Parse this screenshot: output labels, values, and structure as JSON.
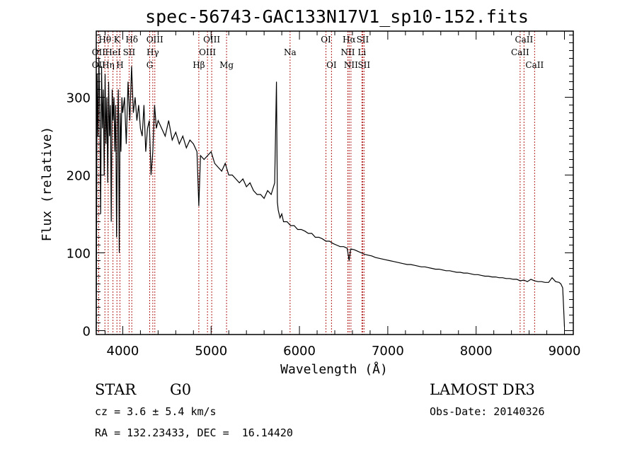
{
  "chart_data": {
    "type": "line",
    "title": "spec-56743-GAC133N17V1_sp10-152.fits",
    "xlabel": "Wavelength (Å)",
    "ylabel": "Flux (relative)",
    "xlim": [
      3700,
      9100
    ],
    "ylim": [
      -5,
      385
    ],
    "xticks": [
      4000,
      5000,
      6000,
      7000,
      8000,
      9000
    ],
    "xtick_labels": [
      "4000",
      "5000",
      "6000",
      "7000",
      "8000",
      "9000"
    ],
    "yticks": [
      0,
      100,
      200,
      300
    ],
    "ytick_labels": [
      "0",
      "100",
      "200",
      "300"
    ],
    "grid": false,
    "series": [
      {
        "name": "spectrum",
        "x": [
          3700,
          3710,
          3720,
          3730,
          3740,
          3750,
          3760,
          3770,
          3780,
          3790,
          3800,
          3810,
          3820,
          3830,
          3840,
          3850,
          3860,
          3870,
          3880,
          3890,
          3900,
          3910,
          3920,
          3930,
          3940,
          3950,
          3960,
          3970,
          3980,
          3990,
          4000,
          4020,
          4040,
          4060,
          4080,
          4100,
          4120,
          4140,
          4160,
          4180,
          4200,
          4220,
          4240,
          4260,
          4280,
          4300,
          4320,
          4340,
          4360,
          4380,
          4400,
          4440,
          4480,
          4520,
          4560,
          4600,
          4640,
          4680,
          4720,
          4760,
          4800,
          4840,
          4861,
          4880,
          4920,
          4960,
          5000,
          5040,
          5080,
          5120,
          5160,
          5200,
          5240,
          5280,
          5320,
          5360,
          5400,
          5440,
          5480,
          5520,
          5560,
          5600,
          5640,
          5680,
          5720,
          5740,
          5750,
          5760,
          5780,
          5800,
          5820,
          5860,
          5900,
          5940,
          5980,
          6020,
          6060,
          6100,
          6140,
          6180,
          6220,
          6260,
          6300,
          6340,
          6380,
          6420,
          6460,
          6500,
          6540,
          6563,
          6580,
          6620,
          6660,
          6700,
          6740,
          6780,
          6820,
          6860,
          6900,
          6940,
          6980,
          7020,
          7060,
          7100,
          7140,
          7180,
          7220,
          7260,
          7300,
          7340,
          7380,
          7420,
          7460,
          7500,
          7540,
          7580,
          7620,
          7660,
          7700,
          7740,
          7780,
          7820,
          7860,
          7900,
          7940,
          7980,
          8020,
          8060,
          8100,
          8140,
          8180,
          8220,
          8260,
          8300,
          8340,
          8380,
          8420,
          8460,
          8500,
          8540,
          8580,
          8620,
          8660,
          8700,
          8740,
          8780,
          8820,
          8860,
          8900,
          8940,
          8960,
          8980,
          8990,
          9000
        ],
        "y": [
          0,
          330,
          250,
          350,
          280,
          150,
          340,
          260,
          310,
          200,
          330,
          240,
          300,
          190,
          320,
          250,
          290,
          140,
          310,
          270,
          300,
          230,
          290,
          120,
          260,
          310,
          100,
          280,
          230,
          300,
          280,
          300,
          240,
          320,
          270,
          340,
          280,
          300,
          270,
          290,
          260,
          250,
          290,
          230,
          260,
          270,
          200,
          230,
          290,
          260,
          270,
          260,
          250,
          270,
          245,
          255,
          240,
          250,
          235,
          245,
          240,
          230,
          160,
          225,
          220,
          225,
          230,
          215,
          210,
          205,
          215,
          200,
          200,
          195,
          190,
          195,
          185,
          190,
          180,
          175,
          175,
          170,
          180,
          175,
          190,
          320,
          165,
          155,
          145,
          150,
          140,
          140,
          135,
          135,
          130,
          130,
          128,
          125,
          125,
          120,
          120,
          118,
          115,
          115,
          112,
          110,
          108,
          108,
          106,
          90,
          105,
          104,
          102,
          100,
          98,
          97,
          96,
          94,
          93,
          92,
          91,
          90,
          89,
          88,
          87,
          86,
          85,
          85,
          84,
          83,
          82,
          82,
          81,
          80,
          79,
          79,
          78,
          77,
          77,
          76,
          75,
          75,
          74,
          74,
          73,
          72,
          72,
          71,
          70,
          70,
          69,
          69,
          68,
          68,
          67,
          67,
          66,
          66,
          64,
          65,
          63,
          66,
          64,
          63,
          63,
          62,
          62,
          68,
          63,
          62,
          60,
          55,
          30,
          5
        ]
      }
    ],
    "line_markers": [
      {
        "label": "OII",
        "wavelength": 3727,
        "row": 2
      },
      {
        "label": "OII",
        "wavelength": 3727,
        "row": 3
      },
      {
        "label": "Hθ",
        "wavelength": 3798,
        "row": 1
      },
      {
        "label": "Hη",
        "wavelength": 3835,
        "row": 3
      },
      {
        "label": "HeI",
        "wavelength": 3889,
        "row": 2
      },
      {
        "label": "K",
        "wavelength": 3934,
        "row": 1
      },
      {
        "label": "H",
        "wavelength": 3968,
        "row": 3
      },
      {
        "label": "SII",
        "wavelength": 4072,
        "row": 2
      },
      {
        "label": "Hδ",
        "wavelength": 4102,
        "row": 1
      },
      {
        "label": "Hγ",
        "wavelength": 4340,
        "row": 2
      },
      {
        "label": "G",
        "wavelength": 4305,
        "row": 3
      },
      {
        "label": "OIII",
        "wavelength": 4363,
        "row": 1
      },
      {
        "label": "Hβ",
        "wavelength": 4861,
        "row": 3
      },
      {
        "label": "OIII",
        "wavelength": 4959,
        "row": 2
      },
      {
        "label": "OIII",
        "wavelength": 5007,
        "row": 1
      },
      {
        "label": "Mg",
        "wavelength": 5175,
        "row": 3
      },
      {
        "label": "Na",
        "wavelength": 5894,
        "row": 2
      },
      {
        "label": "OI",
        "wavelength": 6300,
        "row": 1
      },
      {
        "label": "OI",
        "wavelength": 6363,
        "row": 3
      },
      {
        "label": "NII",
        "wavelength": 6548,
        "row": 2
      },
      {
        "label": "Hα",
        "wavelength": 6563,
        "row": 1
      },
      {
        "label": "NII",
        "wavelength": 6583,
        "row": 3
      },
      {
        "label": "Li",
        "wavelength": 6707,
        "row": 2
      },
      {
        "label": "SII",
        "wavelength": 6716,
        "row": 1
      },
      {
        "label": "SII",
        "wavelength": 6731,
        "row": 3
      },
      {
        "label": "CaII",
        "wavelength": 8498,
        "row": 2
      },
      {
        "label": "CaII",
        "wavelength": 8542,
        "row": 1
      },
      {
        "label": "CaII",
        "wavelength": 8662,
        "row": 3
      }
    ],
    "colors": {
      "spectrum": "#000000",
      "line_markers": "#b22222"
    }
  },
  "info": {
    "object_class": "STAR",
    "subclass": "G0",
    "redshift": "cz = 3.6 ± 5.4 km/s",
    "coordinates": "RA = 132.23433, DEC =  16.14420",
    "survey": "LAMOST DR3",
    "obs_date": "Obs-Date: 20140326"
  }
}
